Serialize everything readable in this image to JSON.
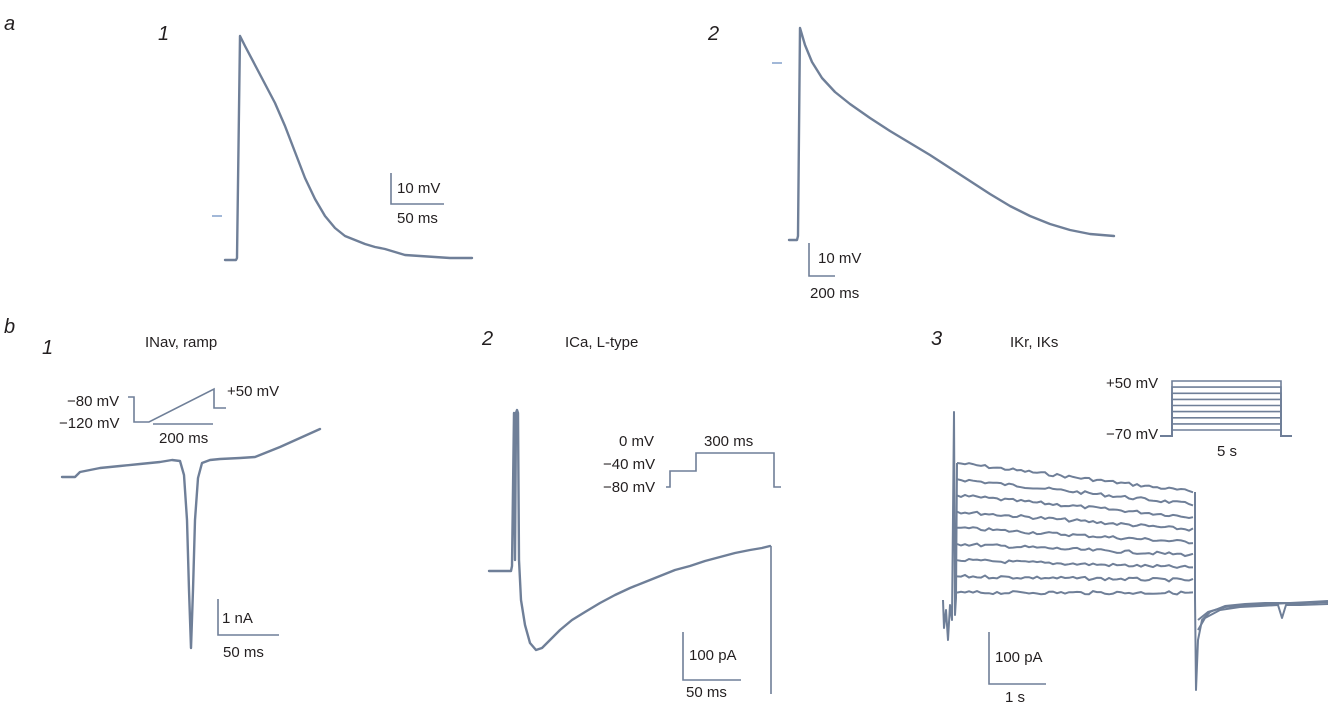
{
  "panel_a": {
    "letter": "a",
    "sub1": {
      "number": "1",
      "scale_y": "10 mV",
      "scale_x": "50 ms"
    },
    "sub2": {
      "number": "2",
      "scale_y": "10 mV",
      "scale_x": "200 ms"
    }
  },
  "panel_b": {
    "letter": "b",
    "sub1": {
      "number": "1",
      "title": "INav, ramp",
      "protocol": {
        "v_hold": "−80 mV",
        "v_step": "−120 mV",
        "v_top": "+50 mV",
        "duration": "200 ms"
      },
      "scale_y": "1 nA",
      "scale_x": "50 ms"
    },
    "sub2": {
      "number": "2",
      "title": "ICa, L-type",
      "protocol": {
        "v_top": "0 mV",
        "v_mid": "−40 mV",
        "v_hold": "−80 mV",
        "duration": "300 ms"
      },
      "scale_y": "100 pA",
      "scale_x": "50 ms"
    },
    "sub3": {
      "number": "3",
      "title": "IKr, IKs",
      "protocol": {
        "v_top": "+50 mV",
        "v_hold": "−70 mV",
        "duration": "5 s",
        "step_count": 9
      },
      "scale_y": "100 pA",
      "scale_x": "1 s",
      "trace_count": 9
    }
  },
  "colors": {
    "trace": "#6f7f98",
    "text": "#231f20",
    "reference_tick": "#8aa7cf"
  }
}
